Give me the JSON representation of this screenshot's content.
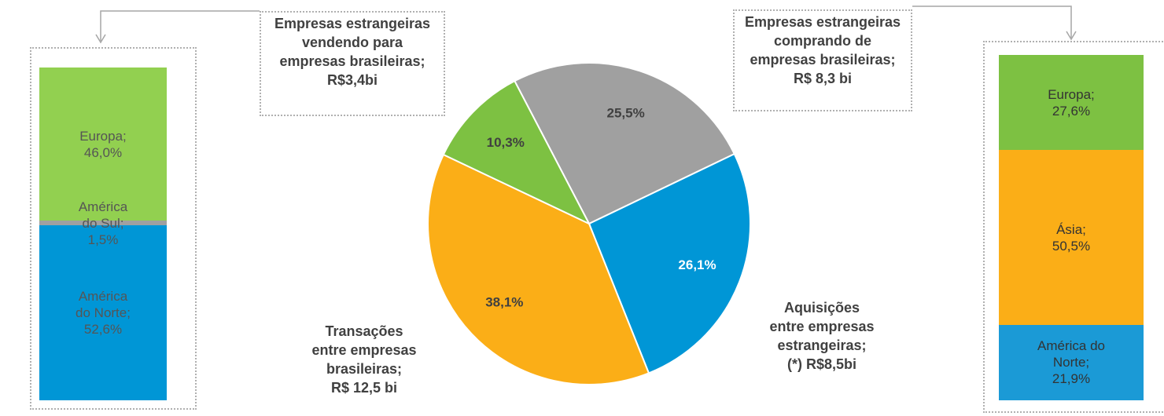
{
  "chart_data": [
    {
      "type": "bar",
      "stacked": true,
      "ylim": [
        0,
        100
      ],
      "series": [
        {
          "name": "Europa;",
          "color": "#92d050",
          "values": [
            46.0
          ],
          "value_labels": [
            "46,0%"
          ]
        },
        {
          "name": "América do Sul;",
          "color": "#a0a0a0",
          "values": [
            1.5
          ],
          "value_labels": [
            "1,5%"
          ]
        },
        {
          "name": "América do Norte;",
          "color": "#0096d6",
          "values": [
            52.6
          ],
          "value_labels": [
            "52,6%"
          ]
        }
      ]
    },
    {
      "type": "pie",
      "values": [
        25.5,
        26.1,
        38.1,
        10.3
      ],
      "value_labels": [
        "25,5%",
        "26,1%",
        "38,1%",
        "10,3%"
      ],
      "colors": [
        "#a0a0a0",
        "#0096d6",
        "#fbae17",
        "#7dc142"
      ],
      "label_colors": [
        "#404040",
        "#ffffff",
        "#404040",
        "#404040"
      ],
      "annotations": [
        {
          "lines": [
            "Empresas estrangeiras",
            "vendendo para",
            "empresas brasileiras;",
            "R$3,4bi"
          ]
        },
        {
          "lines": [
            "Empresas estrangeiras",
            "comprando de",
            "empresas brasileiras;",
            "R$ 8,3 bi"
          ]
        },
        {
          "lines": [
            "Aquisições",
            "entre empresas",
            "estrangeiras;",
            "(*) R$8,5bi"
          ]
        },
        {
          "lines": [
            "Transações",
            "entre empresas",
            "brasileiras;",
            "R$ 12,5 bi"
          ]
        }
      ]
    },
    {
      "type": "bar",
      "stacked": true,
      "ylim": [
        0,
        100
      ],
      "series": [
        {
          "name": "Europa;",
          "color": "#7dc142",
          "values": [
            27.6
          ],
          "value_labels": [
            "27,6%"
          ]
        },
        {
          "name": "Ásia;",
          "color": "#fbae17",
          "values": [
            50.5
          ],
          "value_labels": [
            "50,5%"
          ]
        },
        {
          "name": "América do Norte;",
          "color": "#1b9ad6",
          "values": [
            21.9
          ],
          "value_labels": [
            "21,9%"
          ]
        }
      ]
    }
  ]
}
